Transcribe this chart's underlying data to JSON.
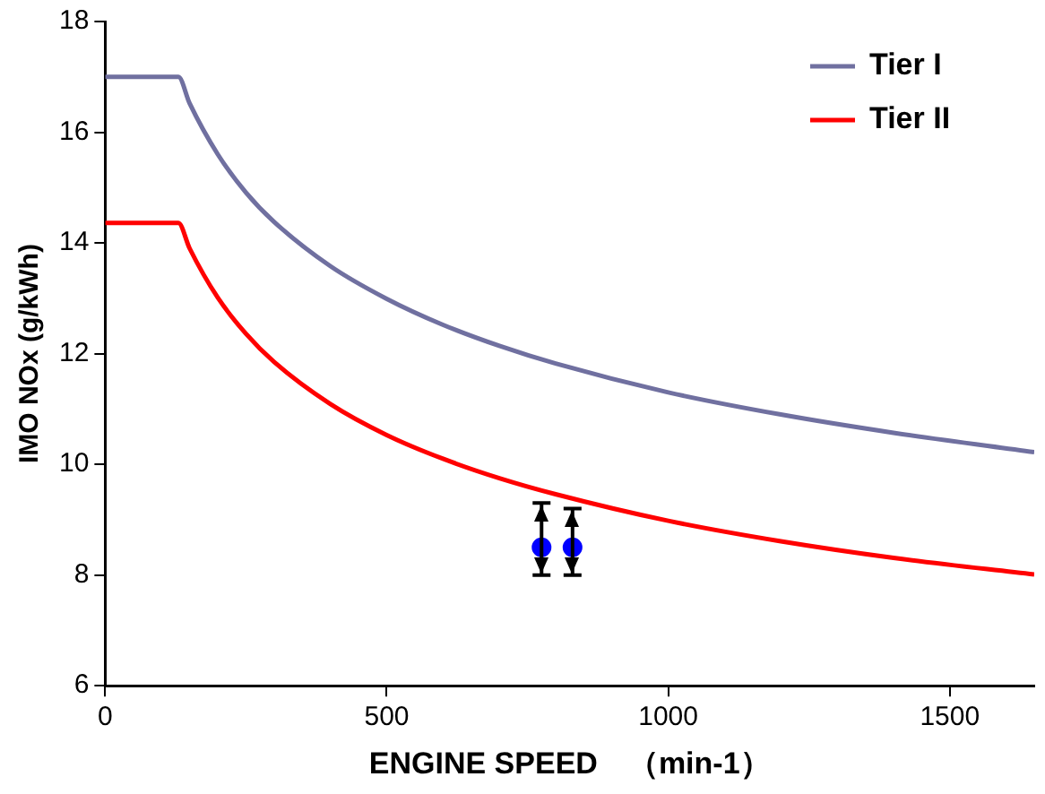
{
  "chart_data": {
    "type": "line",
    "xlabel": "ENGINE SPEED　（min-1）",
    "ylabel": "IMO NOx (g/kWh)",
    "xlim": [
      0,
      1650
    ],
    "xticks": [
      0,
      500,
      1000,
      1500
    ],
    "ylim": [
      6,
      18
    ],
    "yticks": [
      6,
      8,
      10,
      12,
      14,
      16,
      18
    ],
    "grid": false,
    "legend": "top right",
    "marker": "none",
    "line_style": "solid",
    "series": [
      {
        "name": "Tier I",
        "color": "#7070a0",
        "x": [
          0,
          130,
          150,
          200,
          250,
          300,
          400,
          500,
          600,
          700,
          800,
          1000,
          1200,
          1400,
          1650
        ],
        "values": [
          17,
          17,
          16.52,
          15.6,
          14.91,
          14.38,
          13.58,
          12.99,
          12.52,
          12.14,
          11.82,
          11.3,
          10.9,
          10.57,
          10.22
        ]
      },
      {
        "name": "Tier II",
        "color": "#ff0000",
        "x": [
          0,
          130,
          150,
          200,
          250,
          300,
          400,
          500,
          600,
          700,
          800,
          1000,
          1200,
          1400,
          1650
        ],
        "values": [
          14.36,
          14.36,
          13.9,
          13.01,
          12.36,
          11.85,
          11.09,
          10.53,
          10.1,
          9.75,
          9.46,
          8.98,
          8.61,
          8.31,
          8.01
        ]
      },
      {
        "type": "scatter",
        "color": "#0000ff",
        "marker": "circle",
        "x": [
          775,
          830
        ],
        "values": [
          8.5,
          8.5
        ],
        "errors": [
          [
            8.0,
            9.3
          ],
          [
            8.0,
            9.2
          ]
        ]
      }
    ]
  }
}
